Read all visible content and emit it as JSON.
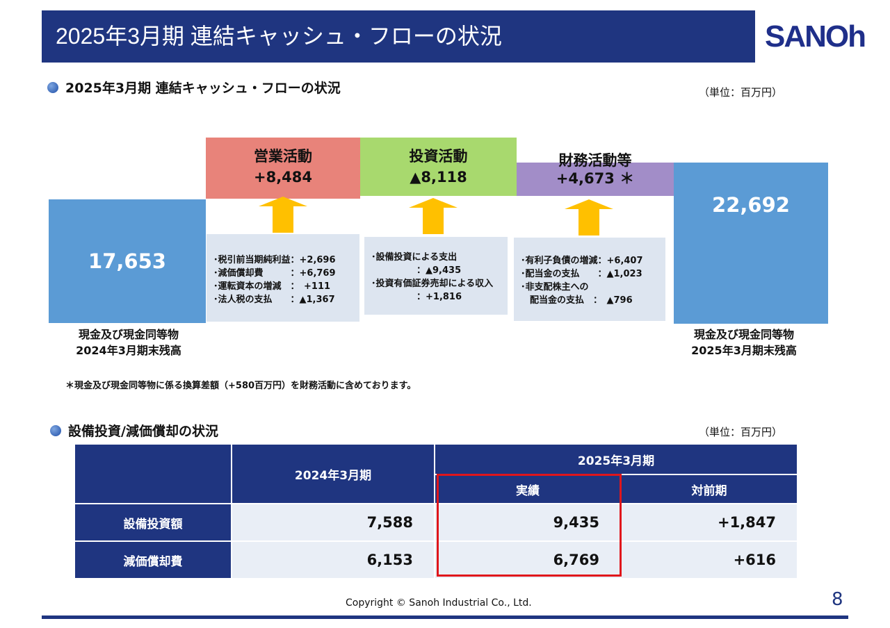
{
  "header": {
    "title": "2025年3月期 連結キャッシュ・フローの状況",
    "logo": "SANOh"
  },
  "section1": {
    "title": "2025年3月期 連結キャッシュ・フローの状況",
    "unit": "（単位：百万円）"
  },
  "flow": {
    "begin": {
      "value": "17,653",
      "label1": "現金及び現金同等物",
      "label2": "2024年3月期末残高"
    },
    "operating": {
      "title": "営業活動",
      "value": "+8,484",
      "details": "･税引前当期純利益：+2,696\n･減価償却費　　　：+6,769\n･運転資本の増減　：　+111\n･法人税の支払　　：▲1,367"
    },
    "investing": {
      "title": "投資活動",
      "value": "▲8,118",
      "details": "･設備投資による支出\n　　　　　：▲9,435\n･投資有価証券売却による収入\n　　　　　：+1,816"
    },
    "financing": {
      "title": "財務活動等",
      "value": "+4,673 ＊",
      "details": "･有利子負債の増減：+6,407\n･配当金の支払　　：▲1,023\n･非支配株主への\n　配当金の支払　：　▲796"
    },
    "end": {
      "value": "22,692",
      "label1": "現金及び現金同等物",
      "label2": "2025年3月期末残高"
    },
    "colors": {
      "cash": "#5b9bd5",
      "operating": "#e8837a",
      "investing": "#a8d96e",
      "financing": "#a28dc8",
      "arrow": "#ffc000"
    }
  },
  "note": "＊現金及び現金同等物に係る換算差額（+580百万円）を財務活動に含めております。",
  "section2": {
    "title": "設備投資/減価償却の状況",
    "unit": "（単位：百万円）"
  },
  "table": {
    "col_prev": "2024年3月期",
    "col_cur": "2025年3月期",
    "col_actual": "実績",
    "col_yoy": "対前期",
    "rows": [
      {
        "label": "設備投資額",
        "prev": "7,588",
        "actual": "9,435",
        "yoy": "+1,847"
      },
      {
        "label": "減価償却費",
        "prev": "6,153",
        "actual": "6,769",
        "yoy": "+616"
      }
    ]
  },
  "footer": {
    "copyright": "Copyright © Sanoh Industrial Co., Ltd.",
    "page": "8"
  }
}
